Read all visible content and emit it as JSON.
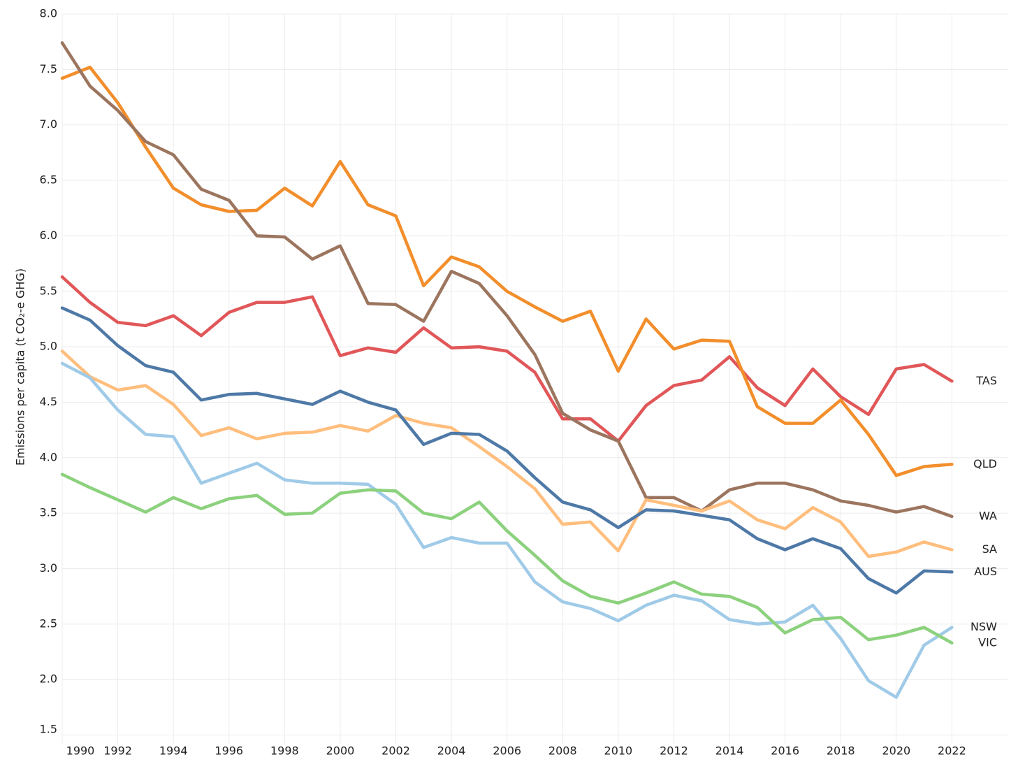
{
  "chart_data": {
    "type": "line",
    "y_label": "Emissions per capita (t CO₂-e GHG)",
    "x": [
      1990,
      1991,
      1992,
      1993,
      1994,
      1995,
      1996,
      1997,
      1998,
      1999,
      2000,
      2001,
      2002,
      2003,
      2004,
      2005,
      2006,
      2007,
      2008,
      2009,
      2010,
      2011,
      2012,
      2013,
      2014,
      2015,
      2016,
      2017,
      2018,
      2019,
      2020,
      2021,
      2022
    ],
    "xlim": [
      1990,
      2024
    ],
    "xticks": [
      1990,
      1992,
      1994,
      1996,
      1998,
      2000,
      2002,
      2004,
      2006,
      2008,
      2010,
      2012,
      2014,
      2016,
      2018,
      2020,
      2022
    ],
    "ylim": [
      1.42,
      8.0
    ],
    "yticks": [
      1.5,
      {
        "value": 2,
        "label": "2.0"
      },
      2.5,
      {
        "value": 3,
        "label": "3.0"
      },
      3.5,
      {
        "value": 4,
        "label": "4.0"
      },
      4.5,
      {
        "value": 5,
        "label": "5.0"
      },
      5.5,
      {
        "value": 6,
        "label": "6.0"
      },
      6.5,
      {
        "value": 7,
        "label": "7.0"
      },
      7.5,
      {
        "value": 8,
        "label": "8.0"
      }
    ],
    "grid": true,
    "series": [
      {
        "name": "TAS",
        "color": "#e15759",
        "values": [
          5.63,
          5.4,
          5.22,
          5.19,
          5.28,
          5.1,
          5.31,
          5.4,
          5.4,
          5.45,
          4.92,
          4.99,
          4.95,
          5.17,
          4.99,
          5.0,
          4.96,
          4.77,
          4.35,
          4.35,
          4.15,
          4.47,
          4.65,
          4.7,
          4.91,
          4.63,
          4.47,
          4.8,
          4.55,
          4.39,
          4.8,
          4.84,
          4.69
        ]
      },
      {
        "name": "QLD",
        "color": "#f28e2b",
        "values": [
          7.42,
          7.52,
          7.2,
          6.8,
          6.43,
          6.28,
          6.22,
          6.23,
          6.43,
          6.27,
          6.67,
          6.28,
          6.18,
          5.55,
          5.81,
          5.72,
          5.5,
          5.36,
          5.23,
          5.32,
          4.78,
          5.25,
          4.98,
          5.06,
          5.05,
          4.46,
          4.31,
          4.31,
          4.52,
          4.21,
          3.84,
          3.92,
          3.94
        ]
      },
      {
        "name": "WA",
        "color": "#9c755f",
        "values": [
          7.74,
          7.35,
          7.13,
          6.85,
          6.73,
          6.42,
          6.32,
          6.0,
          5.99,
          5.79,
          5.91,
          5.39,
          5.38,
          5.23,
          5.68,
          5.57,
          5.28,
          4.93,
          4.4,
          4.25,
          4.15,
          3.64,
          3.64,
          3.52,
          3.71,
          3.77,
          3.77,
          3.71,
          3.61,
          3.57,
          3.51,
          3.56,
          3.47
        ]
      },
      {
        "name": "SA",
        "color": "#ffbe7d",
        "values": [
          4.96,
          4.73,
          4.61,
          4.65,
          4.48,
          4.2,
          4.27,
          4.17,
          4.22,
          4.23,
          4.29,
          4.24,
          4.38,
          4.31,
          4.27,
          4.1,
          3.92,
          3.72,
          3.4,
          3.42,
          3.16,
          3.62,
          3.57,
          3.52,
          3.61,
          3.44,
          3.36,
          3.55,
          3.42,
          3.11,
          3.15,
          3.24,
          3.17
        ]
      },
      {
        "name": "AUS",
        "color": "#4e79a7",
        "values": [
          5.35,
          5.24,
          5.01,
          4.83,
          4.77,
          4.52,
          4.57,
          4.58,
          4.53,
          4.48,
          4.6,
          4.5,
          4.43,
          4.12,
          4.22,
          4.21,
          4.06,
          3.82,
          3.6,
          3.53,
          3.37,
          3.53,
          3.52,
          3.48,
          3.44,
          3.27,
          3.17,
          3.27,
          3.18,
          2.91,
          2.78,
          2.98,
          2.97
        ]
      },
      {
        "name": "NSW",
        "color": "#a0cbe8",
        "values": [
          4.85,
          4.72,
          4.43,
          4.21,
          4.19,
          3.77,
          3.86,
          3.95,
          3.8,
          3.77,
          3.77,
          3.76,
          3.58,
          3.19,
          3.28,
          3.23,
          3.23,
          2.88,
          2.7,
          2.64,
          2.53,
          2.67,
          2.76,
          2.71,
          2.54,
          2.5,
          2.52,
          2.67,
          2.37,
          1.99,
          1.84,
          2.31,
          2.47
        ]
      },
      {
        "name": "VIC",
        "color": "#8cd17d",
        "values": [
          3.85,
          3.73,
          3.62,
          3.51,
          3.64,
          3.54,
          3.63,
          3.66,
          3.49,
          3.5,
          3.68,
          3.71,
          3.7,
          3.5,
          3.45,
          3.6,
          3.34,
          3.12,
          2.89,
          2.75,
          2.69,
          2.78,
          2.88,
          2.77,
          2.75,
          2.65,
          2.42,
          2.54,
          2.56,
          2.36,
          2.4,
          2.47,
          2.33
        ]
      }
    ]
  }
}
